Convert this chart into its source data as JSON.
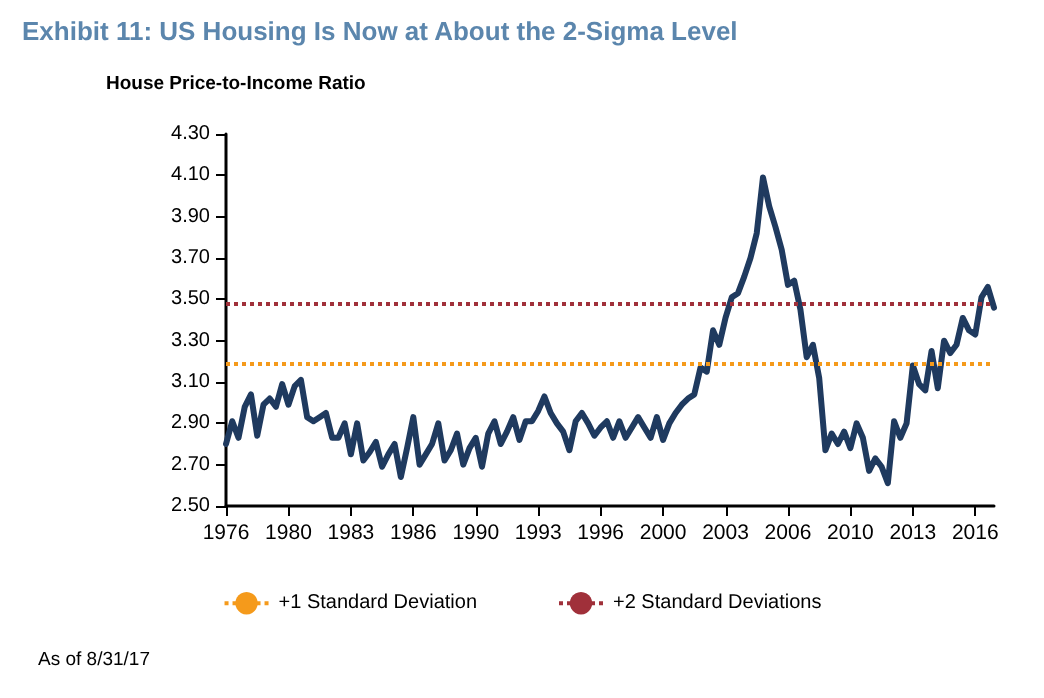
{
  "chart_data": {
    "type": "line",
    "title": "Exhibit 11: US Housing Is Now at About the 2-Sigma Level",
    "subtitle": "House Price-to-Income Ratio",
    "annotations": [
      "As of 8/31/17"
    ],
    "categories": [
      "1976",
      null,
      null,
      null,
      null,
      null,
      null,
      null,
      null,
      null,
      "1980",
      null,
      null,
      null,
      null,
      null,
      null,
      null,
      null,
      null,
      "1983",
      null,
      null,
      null,
      null,
      null,
      null,
      null,
      null,
      null,
      "1986",
      null,
      null,
      null,
      null,
      null,
      null,
      null,
      null,
      null,
      "1990",
      null,
      null,
      null,
      null,
      null,
      null,
      null,
      null,
      null,
      "1993",
      null,
      null,
      null,
      null,
      null,
      null,
      null,
      null,
      null,
      "1996",
      null,
      null,
      null,
      null,
      null,
      null,
      null,
      null,
      null,
      "2000",
      null,
      null,
      null,
      null,
      null,
      null,
      null,
      null,
      null,
      "2003",
      null,
      null,
      null,
      null,
      null,
      null,
      null,
      null,
      null,
      "2006",
      null,
      null,
      null,
      null,
      null,
      null,
      null,
      null,
      null,
      "2010",
      null,
      null,
      null,
      null,
      null,
      null,
      null,
      null,
      null,
      "2013",
      null,
      null,
      null,
      null,
      null,
      null,
      null,
      null,
      null,
      "2016",
      null,
      null,
      null
    ],
    "series": [
      {
        "color": "#1f3a5f",
        "values": [
          2.8,
          2.91,
          2.83,
          2.98,
          3.04,
          2.84,
          2.99,
          3.02,
          2.98,
          3.09,
          2.99,
          3.08,
          3.11,
          2.93,
          2.91,
          2.93,
          2.95,
          2.83,
          2.83,
          2.9,
          2.75,
          2.9,
          2.72,
          2.76,
          2.81,
          2.69,
          2.75,
          2.8,
          2.64,
          2.78,
          2.93,
          2.7,
          2.75,
          2.8,
          2.9,
          2.72,
          2.77,
          2.85,
          2.7,
          2.78,
          2.83,
          2.69,
          2.85,
          2.91,
          2.8,
          2.86,
          2.93,
          2.82,
          2.91,
          2.91,
          2.96,
          3.03,
          2.95,
          2.9,
          2.86,
          2.77,
          2.91,
          2.95,
          2.9,
          2.84,
          2.88,
          2.91,
          2.83,
          2.91,
          2.83,
          2.88,
          2.93,
          2.88,
          2.83,
          2.93,
          2.82,
          2.9,
          2.95,
          2.99,
          3.02,
          3.04,
          3.17,
          3.15,
          3.35,
          3.28,
          3.41,
          3.51,
          3.53,
          3.61,
          3.7,
          3.82,
          4.09,
          3.95,
          3.85,
          3.74,
          3.57,
          3.59,
          3.45,
          3.22,
          3.28,
          3.12,
          2.77,
          2.85,
          2.8,
          2.86,
          2.78,
          2.9,
          2.83,
          2.67,
          2.73,
          2.69,
          2.61,
          2.91,
          2.83,
          2.9,
          3.18,
          3.09,
          3.06,
          3.25,
          3.07,
          3.3,
          3.24,
          3.28,
          3.41,
          3.35,
          3.33,
          3.51,
          3.56,
          3.46
        ]
      }
    ],
    "ylim": [
      2.5,
      4.3
    ],
    "yticks": [
      {
        "value": 2.5,
        "label": "2.50"
      },
      {
        "value": 2.7,
        "label": "2.70"
      },
      {
        "value": 2.9,
        "label": "2.90"
      },
      {
        "value": 3.1,
        "label": "3.10"
      },
      {
        "value": 3.3,
        "label": "3.30"
      },
      {
        "value": 3.5,
        "label": "3.50"
      },
      {
        "value": 3.7,
        "label": "3.70"
      },
      {
        "value": 3.9,
        "label": "3.90"
      },
      {
        "value": 4.1,
        "label": "4.10"
      },
      {
        "value": 4.3,
        "label": "4.30"
      }
    ],
    "ref_lines": [
      {
        "axis": "y",
        "value": 3.19,
        "label": "+1 Standard Deviation",
        "color": "#f59a1b",
        "line_style": "dotted"
      },
      {
        "axis": "y",
        "value": 3.48,
        "label": "+2 Standard Deviations",
        "color": "#a0303a",
        "line_style": "dotted"
      }
    ],
    "grid": false,
    "legend": "bottom",
    "marker": "none",
    "line_style": "solid"
  }
}
